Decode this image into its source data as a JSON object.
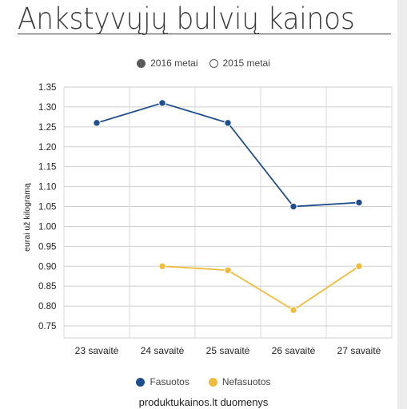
{
  "title": "Ankstyvųjų bulvių kainos",
  "top_legend": [
    {
      "label": "2016 metai",
      "color": "#5a5a5a",
      "style": "filled"
    },
    {
      "label": "2015 metai",
      "color": "#555555",
      "style": "hollow"
    }
  ],
  "source": "produktukainos.lt duomenys",
  "chart_data": {
    "type": "line",
    "title": "Ankstyvųjų bulvių kainos",
    "xlabel": "",
    "ylabel": "eurai už kilogramą",
    "categories": [
      "23 savaitė",
      "24 savaitė",
      "25 savaitė",
      "26 savaitė",
      "27 savaitė"
    ],
    "yticks": [
      "0.75",
      "0.80",
      "0.85",
      "0.90",
      "0.95",
      "1.00",
      "1.05",
      "1.10",
      "1.15",
      "1.20",
      "1.25",
      "1.30",
      "1.35"
    ],
    "ylim": [
      0.72,
      1.35
    ],
    "grid": true,
    "legend_position": "bottom",
    "series": [
      {
        "name": "Fasuotos",
        "color": "#1f4e8c",
        "values": [
          1.26,
          1.31,
          1.26,
          1.05,
          1.06
        ]
      },
      {
        "name": "Nefasuotos",
        "color": "#f0bc3c",
        "values": [
          null,
          0.9,
          0.89,
          0.79,
          0.9
        ]
      }
    ]
  }
}
